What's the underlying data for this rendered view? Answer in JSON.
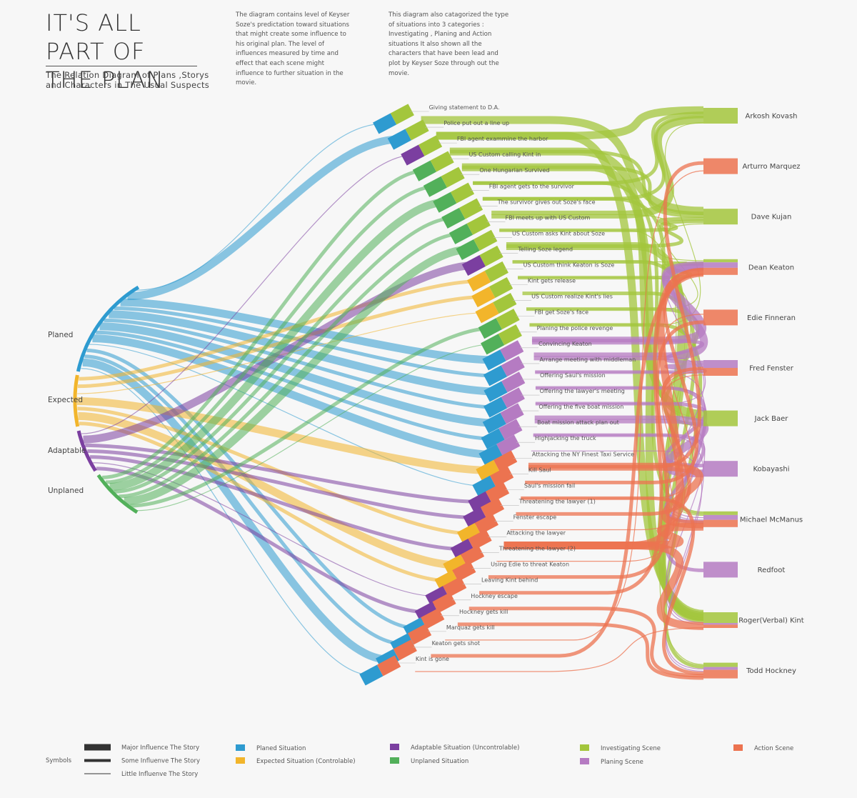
{
  "title": "IT'S ALL PART OF THE PLAN",
  "subtitle": "The Relation Diagram of Plans ,Storys and Characters in The Usual Suspects",
  "description_1": "The diagram contains level of Keyser Soze's predictation toward situations that might create some influence to his original plan. The level of influences measured by time and effect that each scene might influence to further situation in the movie.",
  "description_2": "This diagram also catagorized the type of situations into 3 categories : Investigating , Planing and Action situations It also shown all the characters that have been lead and plot by Keyser Soze through out the movie.",
  "colors": {
    "planed": "#2e9bd0",
    "expected": "#f2b52b",
    "adaptable": "#7b3fa0",
    "unplaned": "#52b05a",
    "investigating": "#a3c63c",
    "planing": "#b57bc2",
    "action": "#ec7350"
  },
  "categories": [
    {
      "name": "Planed",
      "key": "planed"
    },
    {
      "name": "Expected",
      "key": "expected"
    },
    {
      "name": "Adaptable",
      "key": "adaptable"
    },
    {
      "name": "Unplaned",
      "key": "unplaned"
    }
  ],
  "scenes": [
    {
      "label": "Giving statement to D.A.",
      "situation": "planed",
      "scene": "investigating"
    },
    {
      "label": "Police put out a line up",
      "situation": "planed",
      "scene": "investigating"
    },
    {
      "label": "FBI agent exammine the harbor",
      "situation": "adaptable",
      "scene": "investigating"
    },
    {
      "label": "US Custom calling Kint in",
      "situation": "unplaned",
      "scene": "investigating"
    },
    {
      "label": "One Hungarian Survived",
      "situation": "unplaned",
      "scene": "investigating"
    },
    {
      "label": "FBI agent gets to the survivor",
      "situation": "unplaned",
      "scene": "investigating"
    },
    {
      "label": "The survivor gives out Soze's face",
      "situation": "unplaned",
      "scene": "investigating"
    },
    {
      "label": "FBI meets up with US Custom",
      "situation": "unplaned",
      "scene": "investigating"
    },
    {
      "label": "US Custom asks Kint about Soze",
      "situation": "unplaned",
      "scene": "investigating"
    },
    {
      "label": "Telling Soze legend",
      "situation": "adaptable",
      "scene": "investigating"
    },
    {
      "label": "US Custom think Keaton is Soze",
      "situation": "expected",
      "scene": "investigating"
    },
    {
      "label": "Kint gets release",
      "situation": "expected",
      "scene": "investigating"
    },
    {
      "label": "US Custom realize Kint's lies",
      "situation": "expected",
      "scene": "investigating"
    },
    {
      "label": "FBI get Soze's face",
      "situation": "unplaned",
      "scene": "investigating"
    },
    {
      "label": "Planing the police revenge",
      "situation": "unplaned",
      "scene": "investigating"
    },
    {
      "label": "Convincing Keaton",
      "situation": "planed",
      "scene": "planing"
    },
    {
      "label": "Arrange meeting with middleman",
      "situation": "planed",
      "scene": "planing"
    },
    {
      "label": "Offering Saul's mission",
      "situation": "planed",
      "scene": "planing"
    },
    {
      "label": "Offering the lawyer's meeting",
      "situation": "planed",
      "scene": "planing"
    },
    {
      "label": "Offering the five boat mission",
      "situation": "planed",
      "scene": "planing"
    },
    {
      "label": "Boat mission attack plan out",
      "situation": "planed",
      "scene": "planing"
    },
    {
      "label": "Highjacking the truck",
      "situation": "planed",
      "scene": "planing"
    },
    {
      "label": "Attacking the NY Finest Taxi Service",
      "situation": "expected",
      "scene": "action"
    },
    {
      "label": "Kill Saul",
      "situation": "planed",
      "scene": "action"
    },
    {
      "label": "Saul's mission fail",
      "situation": "adaptable",
      "scene": "action"
    },
    {
      "label": "Threatening the lawyer (1)",
      "situation": "adaptable",
      "scene": "action"
    },
    {
      "label": "Fenster escape",
      "situation": "expected",
      "scene": "action"
    },
    {
      "label": "Attacking the lawyer",
      "situation": "adaptable",
      "scene": "action"
    },
    {
      "label": "Threatening the lawyer (2)",
      "situation": "expected",
      "scene": "action"
    },
    {
      "label": "Using Edie to threat Keaton",
      "situation": "expected",
      "scene": "action"
    },
    {
      "label": "Leaving Kint behind",
      "situation": "adaptable",
      "scene": "action"
    },
    {
      "label": "Hockney escape",
      "situation": "adaptable",
      "scene": "action"
    },
    {
      "label": "Hockney gets kill",
      "situation": "planed",
      "scene": "action"
    },
    {
      "label": "Marquaz gets kill",
      "situation": "planed",
      "scene": "action"
    },
    {
      "label": "Keaton gets shot",
      "situation": "planed",
      "scene": "action"
    },
    {
      "label": "Kint is gone",
      "situation": "planed",
      "scene": "action"
    }
  ],
  "characters": [
    {
      "name": "Arkosh Kovash"
    },
    {
      "name": "Arturro Marquez"
    },
    {
      "name": "Dave Kujan"
    },
    {
      "name": "Dean Keaton"
    },
    {
      "name": "Edie Finneran"
    },
    {
      "name": "Fred Fenster"
    },
    {
      "name": "Jack Baer"
    },
    {
      "name": "Kobayashi"
    },
    {
      "name": "Michael McManus"
    },
    {
      "name": "Redfoot"
    },
    {
      "name": "Roger(Verbal) Kint"
    },
    {
      "name": "Todd Hockney"
    }
  ],
  "links": [
    {
      "scene": 0,
      "character": 2,
      "weight": 3,
      "kind": "investigating"
    },
    {
      "scene": 1,
      "character": 0,
      "weight": 3,
      "kind": "investigating"
    },
    {
      "scene": 1,
      "character": 10,
      "weight": 3,
      "kind": "investigating"
    },
    {
      "scene": 2,
      "character": 6,
      "weight": 3,
      "kind": "investigating"
    },
    {
      "scene": 2,
      "character": 2,
      "weight": 2,
      "kind": "investigating"
    },
    {
      "scene": 3,
      "character": 10,
      "weight": 3,
      "kind": "investigating"
    },
    {
      "scene": 3,
      "character": 2,
      "weight": 2,
      "kind": "investigating"
    },
    {
      "scene": 4,
      "character": 0,
      "weight": 2,
      "kind": "investigating"
    },
    {
      "scene": 4,
      "character": 8,
      "weight": 2,
      "kind": "investigating"
    },
    {
      "scene": 5,
      "character": 6,
      "weight": 2,
      "kind": "investigating"
    },
    {
      "scene": 5,
      "character": 0,
      "weight": 2,
      "kind": "investigating"
    },
    {
      "scene": 6,
      "character": 0,
      "weight": 3,
      "kind": "investigating"
    },
    {
      "scene": 6,
      "character": 3,
      "weight": 1,
      "kind": "investigating"
    },
    {
      "scene": 7,
      "character": 2,
      "weight": 2,
      "kind": "investigating"
    },
    {
      "scene": 7,
      "character": 11,
      "weight": 1,
      "kind": "investigating"
    },
    {
      "scene": 8,
      "character": 2,
      "weight": 2,
      "kind": "investigating"
    },
    {
      "scene": 8,
      "character": 10,
      "weight": 3,
      "kind": "investigating"
    },
    {
      "scene": 9,
      "character": 10,
      "weight": 2,
      "kind": "investigating"
    },
    {
      "scene": 9,
      "character": 3,
      "weight": 1,
      "kind": "investigating"
    },
    {
      "scene": 10,
      "character": 3,
      "weight": 2,
      "kind": "investigating"
    },
    {
      "scene": 10,
      "character": 8,
      "weight": 1,
      "kind": "investigating"
    },
    {
      "scene": 11,
      "character": 10,
      "weight": 2,
      "kind": "investigating"
    },
    {
      "scene": 12,
      "character": 6,
      "weight": 2,
      "kind": "investigating"
    },
    {
      "scene": 12,
      "character": 2,
      "weight": 1,
      "kind": "investigating"
    },
    {
      "scene": 13,
      "character": 11,
      "weight": 2,
      "kind": "investigating"
    },
    {
      "scene": 13,
      "character": 0,
      "weight": 1,
      "kind": "investigating"
    },
    {
      "scene": 14,
      "character": 3,
      "weight": 3,
      "kind": "planing"
    },
    {
      "scene": 14,
      "character": 5,
      "weight": 2,
      "kind": "planing"
    },
    {
      "scene": 15,
      "character": 3,
      "weight": 3,
      "kind": "planing"
    },
    {
      "scene": 15,
      "character": 8,
      "weight": 1,
      "kind": "planing"
    },
    {
      "scene": 16,
      "character": 5,
      "weight": 2,
      "kind": "planing"
    },
    {
      "scene": 16,
      "character": 10,
      "weight": 1,
      "kind": "planing"
    },
    {
      "scene": 17,
      "character": 9,
      "weight": 2,
      "kind": "planing"
    },
    {
      "scene": 17,
      "character": 8,
      "weight": 1,
      "kind": "planing"
    },
    {
      "scene": 18,
      "character": 7,
      "weight": 2,
      "kind": "planing"
    },
    {
      "scene": 18,
      "character": 3,
      "weight": 1,
      "kind": "planing"
    },
    {
      "scene": 19,
      "character": 7,
      "weight": 3,
      "kind": "planing"
    },
    {
      "scene": 19,
      "character": 10,
      "weight": 1,
      "kind": "planing"
    },
    {
      "scene": 20,
      "character": 8,
      "weight": 2,
      "kind": "planing"
    },
    {
      "scene": 20,
      "character": 11,
      "weight": 1,
      "kind": "planing"
    },
    {
      "scene": 21,
      "character": 11,
      "weight": 1,
      "kind": "planing"
    },
    {
      "scene": 22,
      "character": 1,
      "weight": 2,
      "kind": "action"
    },
    {
      "scene": 22,
      "character": 8,
      "weight": 3,
      "kind": "action"
    },
    {
      "scene": 23,
      "character": 3,
      "weight": 2,
      "kind": "action"
    },
    {
      "scene": 24,
      "character": 4,
      "weight": 1,
      "kind": "action"
    },
    {
      "scene": 24,
      "character": 11,
      "weight": 2,
      "kind": "action"
    },
    {
      "scene": 25,
      "character": 5,
      "weight": 2,
      "kind": "action"
    },
    {
      "scene": 26,
      "character": 5,
      "weight": 1,
      "kind": "action"
    },
    {
      "scene": 27,
      "character": 3,
      "weight": 3,
      "kind": "action"
    },
    {
      "scene": 27,
      "character": 8,
      "weight": 3,
      "kind": "action"
    },
    {
      "scene": 27,
      "character": 10,
      "weight": 3,
      "kind": "action"
    },
    {
      "scene": 28,
      "character": 5,
      "weight": 1,
      "kind": "action"
    },
    {
      "scene": 29,
      "character": 4,
      "weight": 2,
      "kind": "action"
    },
    {
      "scene": 30,
      "character": 3,
      "weight": 2,
      "kind": "action"
    },
    {
      "scene": 31,
      "character": 11,
      "weight": 2,
      "kind": "action"
    },
    {
      "scene": 32,
      "character": 11,
      "weight": 2,
      "kind": "action"
    },
    {
      "scene": 33,
      "character": 1,
      "weight": 1,
      "kind": "action"
    },
    {
      "scene": 34,
      "character": 3,
      "weight": 2,
      "kind": "action"
    },
    {
      "scene": 35,
      "character": 10,
      "weight": 1,
      "kind": "action"
    }
  ],
  "category_links": [
    {
      "category": 0,
      "scene": 0,
      "weight": 1
    },
    {
      "category": 0,
      "scene": 1,
      "weight": 3
    },
    {
      "category": 0,
      "scene": 15,
      "weight": 3
    },
    {
      "category": 0,
      "scene": 16,
      "weight": 2
    },
    {
      "category": 0,
      "scene": 17,
      "weight": 3
    },
    {
      "category": 0,
      "scene": 18,
      "weight": 2
    },
    {
      "category": 0,
      "scene": 19,
      "weight": 3
    },
    {
      "category": 0,
      "scene": 20,
      "weight": 2
    },
    {
      "category": 0,
      "scene": 21,
      "weight": 3
    },
    {
      "category": 0,
      "scene": 23,
      "weight": 1
    },
    {
      "category": 0,
      "scene": 32,
      "weight": 2
    },
    {
      "category": 0,
      "scene": 33,
      "weight": 2
    },
    {
      "category": 0,
      "scene": 34,
      "weight": 3
    },
    {
      "category": 0,
      "scene": 35,
      "weight": 1
    },
    {
      "category": 1,
      "scene": 10,
      "weight": 2
    },
    {
      "category": 1,
      "scene": 11,
      "weight": 2
    },
    {
      "category": 1,
      "scene": 12,
      "weight": 1
    },
    {
      "category": 1,
      "scene": 22,
      "weight": 3
    },
    {
      "category": 1,
      "scene": 26,
      "weight": 2
    },
    {
      "category": 1,
      "scene": 28,
      "weight": 3
    },
    {
      "category": 1,
      "scene": 29,
      "weight": 2
    },
    {
      "category": 2,
      "scene": 2,
      "weight": 1
    },
    {
      "category": 2,
      "scene": 9,
      "weight": 3
    },
    {
      "category": 2,
      "scene": 24,
      "weight": 2
    },
    {
      "category": 2,
      "scene": 25,
      "weight": 2
    },
    {
      "category": 2,
      "scene": 27,
      "weight": 2
    },
    {
      "category": 2,
      "scene": 30,
      "weight": 1
    },
    {
      "category": 2,
      "scene": 31,
      "weight": 2
    },
    {
      "category": 3,
      "scene": 3,
      "weight": 2
    },
    {
      "category": 3,
      "scene": 4,
      "weight": 2
    },
    {
      "category": 3,
      "scene": 5,
      "weight": 3
    },
    {
      "category": 3,
      "scene": 6,
      "weight": 2
    },
    {
      "category": 3,
      "scene": 7,
      "weight": 2
    },
    {
      "category": 3,
      "scene": 8,
      "weight": 3
    },
    {
      "category": 3,
      "scene": 13,
      "weight": 2
    },
    {
      "category": 3,
      "scene": 14,
      "weight": 1
    }
  ],
  "legend": {
    "symbols_label": "Symbols",
    "influence": [
      {
        "label": "Major Influence The Story",
        "weight": 3
      },
      {
        "label": "Some Influenve The Story",
        "weight": 2
      },
      {
        "label": "Little Influenve  The Story",
        "weight": 1
      }
    ],
    "situations": [
      {
        "label": "Planed Situation",
        "key": "planed"
      },
      {
        "label": "Expected Situation (Controlable)",
        "key": "expected"
      },
      {
        "label": "Adaptable Situation (Uncontrolable)",
        "key": "adaptable"
      },
      {
        "label": "Unplaned Situation",
        "key": "unplaned"
      }
    ],
    "scene_types": [
      {
        "label": "Investigating Scene",
        "key": "investigating"
      },
      {
        "label": "Planing Scene",
        "key": "planing"
      },
      {
        "label": "Action Scene",
        "key": "action"
      }
    ]
  }
}
